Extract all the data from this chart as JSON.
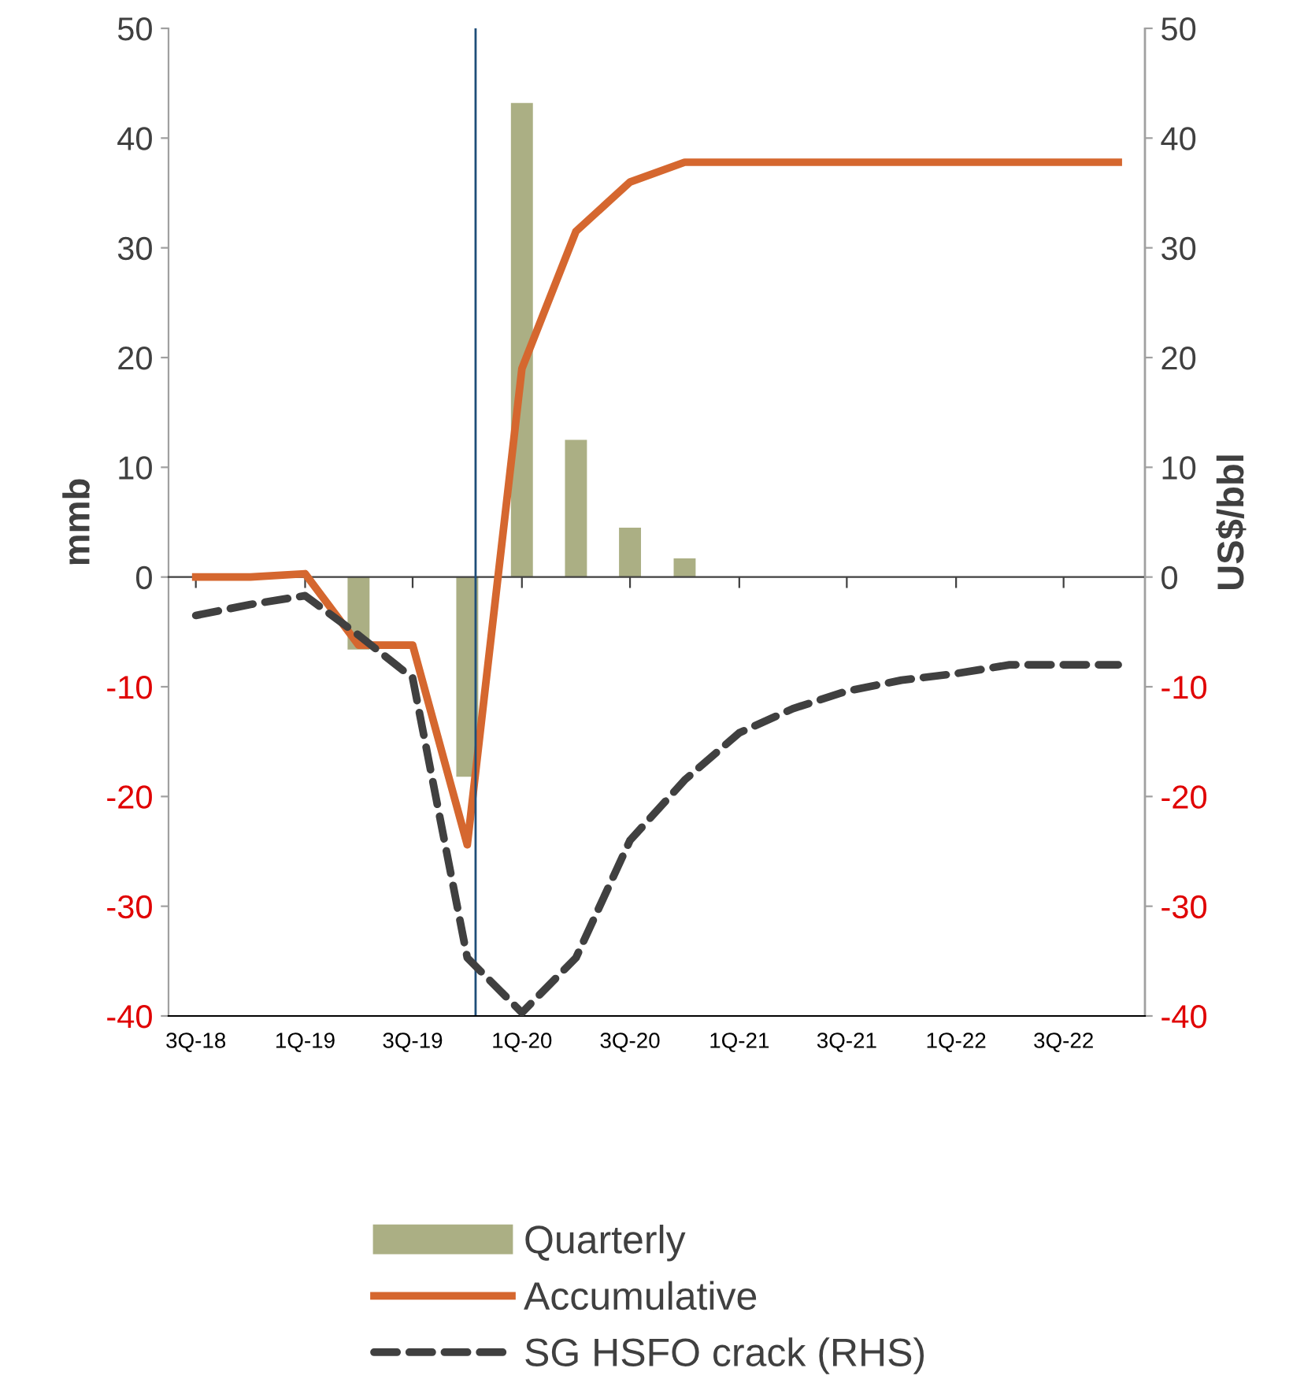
{
  "chart_data": {
    "type": "bar",
    "x": [
      "2018-07",
      "2018-10",
      "2019-01",
      "2019-04",
      "2019-07",
      "2019-10",
      "2020-01",
      "2020-04",
      "2020-07",
      "2020-10",
      "2021-01",
      "2021-04",
      "2021-07",
      "2021-10",
      "2022-01",
      "2022-04",
      "2022-07",
      "2022-10"
    ],
    "series": [
      {
        "name": "Quarterly",
        "color": "#abaf84",
        "values": [
          0,
          0,
          0,
          -6.6,
          0,
          -18.2,
          43.2,
          12.5,
          4.5,
          1.7,
          0,
          0,
          0,
          0,
          0,
          0,
          0,
          0
        ]
      },
      {
        "name": "Accumulative",
        "type": "line",
        "color": "#d5672f",
        "line_style": "solid",
        "values": [
          0,
          0,
          0.3,
          -6.2,
          -6.2,
          -24.4,
          19,
          31.5,
          36,
          37.8,
          37.8,
          37.8,
          37.8,
          37.8,
          37.8,
          37.8,
          37.8,
          37.8
        ]
      },
      {
        "name": "SG HSFO crack (RHS)",
        "type": "line",
        "axis": "y2",
        "color": "#404040",
        "line_style": "dashed",
        "values": [
          -3.5,
          -2.5,
          -1.7,
          -5.3,
          -9.2,
          -34.7,
          -39.7,
          -34.7,
          -24,
          -18.5,
          -14.2,
          -12,
          -10.4,
          -9.4,
          -8.8,
          -8,
          -8,
          -8
        ]
      }
    ],
    "xlim": [
      "2018-05-16",
      "2022-11-15"
    ],
    "xticks": [
      {
        "value": "2018-07",
        "label": "3Q-18"
      },
      {
        "value": "2019-01",
        "label": "1Q-19"
      },
      {
        "value": "2019-07",
        "label": "3Q-19"
      },
      {
        "value": "2020-01",
        "label": "1Q-20"
      },
      {
        "value": "2020-07",
        "label": "3Q-20"
      },
      {
        "value": "2021-01",
        "label": "1Q-21"
      },
      {
        "value": "2021-07",
        "label": "3Q-21"
      },
      {
        "value": "2022-01",
        "label": "1Q-22"
      },
      {
        "value": "2022-07",
        "label": "3Q-22"
      }
    ],
    "ylim": [
      -40,
      50
    ],
    "yticks": [
      -40,
      -30,
      -20,
      -10,
      0,
      10,
      20,
      30,
      40,
      50
    ],
    "y2lim": [
      -40,
      50
    ],
    "y2ticks": [
      -40,
      -30,
      -20,
      -10,
      0,
      10,
      20,
      30,
      40,
      50
    ],
    "ylabel": "mmb",
    "y2label": "US$/bbl",
    "ref_lines": [
      {
        "axis": "x",
        "value": "2019-10-15",
        "color": "#1f4e79"
      }
    ],
    "legend": "bottom"
  }
}
